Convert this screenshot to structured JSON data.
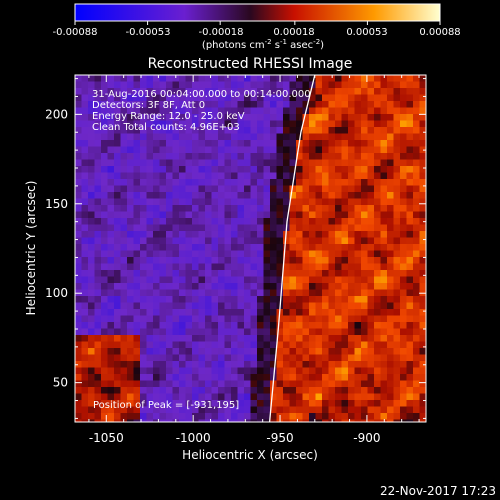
{
  "colorbar": {
    "ticks": [
      "-0.00088",
      "-0.00053",
      "-0.00018",
      "0.00018",
      "0.00053",
      "0.00088"
    ],
    "tick_values": [
      -0.00088,
      -0.00053,
      -0.00018,
      0.00018,
      0.00053,
      0.00088
    ],
    "range": [
      -0.00088,
      0.00088
    ],
    "unit_prefix": "(photons cm",
    "unit_exp1": "-2",
    "unit_mid": " s",
    "unit_exp2": "-1",
    "unit_mid2": " asec",
    "unit_exp3": "-2",
    "unit_suffix": ")",
    "colors": [
      "#0000ff",
      "#6a1fd0",
      "#3a0a1a",
      "#c81000",
      "#ff9a00",
      "#ffffd0"
    ]
  },
  "chart_data": {
    "type": "heatmap",
    "title": "Reconstructed RHESSI Image",
    "xlabel": "Heliocentric X (arcsec)",
    "ylabel": "Heliocentric Y (arcsec)",
    "xlim": [
      -1068,
      -866
    ],
    "ylim": [
      28,
      222
    ],
    "x_ticks": [
      -1050,
      -1000,
      -950,
      -900
    ],
    "y_ticks": [
      50,
      100,
      150,
      200
    ],
    "x_tick_labels": [
      "-1050",
      "-1000",
      "-950",
      "-900"
    ],
    "y_tick_labels": [
      "50",
      "100",
      "150",
      "200"
    ],
    "limb_line": [
      [
        -956,
        28
      ],
      [
        -951,
        80
      ],
      [
        -946,
        140
      ],
      [
        -938,
        190
      ],
      [
        -930,
        222
      ]
    ],
    "peak": [
      -931,
      195
    ],
    "annotations": {
      "line1": "31-Aug-2016 00:04:00.000 to 00:14:00.000",
      "line2": "Detectors: 3F 8F, Att 0",
      "line3": "Energy Range: 12.0 - 25.0 keV",
      "line4": "Clean    Total counts: 4.96E+03",
      "peak_label": "Position of Peak = [-931,195]"
    },
    "colormap": "blue-purple-red-yellow-white"
  },
  "footer": {
    "date": "22-Nov-2017 17:23"
  }
}
